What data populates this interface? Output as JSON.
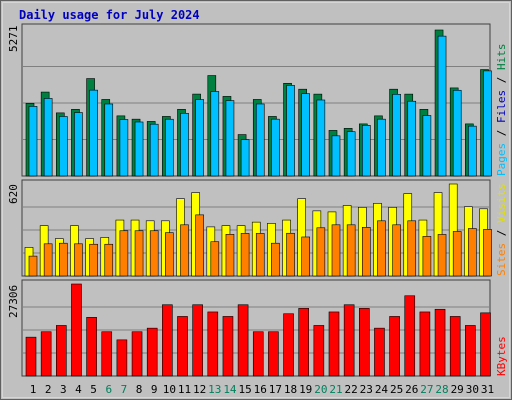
{
  "chart_data": {
    "type": "bar",
    "title": "Daily usage for July 2024",
    "categories": [
      "1",
      "2",
      "3",
      "4",
      "5",
      "6",
      "7",
      "8",
      "9",
      "10",
      "11",
      "12",
      "13",
      "14",
      "15",
      "16",
      "17",
      "18",
      "19",
      "20",
      "21",
      "22",
      "23",
      "24",
      "25",
      "26",
      "27",
      "28",
      "29",
      "30",
      "31"
    ],
    "weekend_days": [
      "6",
      "7",
      "13",
      "14",
      "20",
      "21",
      "27",
      "28"
    ],
    "panels": [
      {
        "id": "hits",
        "ymax_label": "5271",
        "ylim": [
          0,
          5271
        ],
        "right_labels": [
          "Pages",
          "Files",
          "Hits"
        ],
        "series": [
          {
            "name": "Hits",
            "color": "#008040",
            "values": [
              2625,
              3030,
              2279,
              2407,
              3518,
              2764,
              2171,
              2052,
              1970,
              2151,
              2407,
              2957,
              3627,
              2874,
              1496,
              2764,
              2151,
              3347,
              3134,
              2956,
              1646,
              1721,
              1881,
              2171,
              3134,
              2956,
              2407,
              5271,
              3180,
              1881,
              3843
            ]
          },
          {
            "name": "Files",
            "color": "#00c0ff",
            "values": [
              2514,
              2800,
              2150,
              2291,
              3100,
              2600,
              2040,
              1950,
              1870,
              2050,
              2264,
              2761,
              3050,
              2724,
              1310,
              2600,
              2052,
              3271,
              2971,
              2744,
              1450,
              1600,
              1830,
              2052,
              2950,
              2700,
              2183,
              5050,
              3095,
              1800,
              3795
            ]
          },
          {
            "name": "Pages",
            "color": "#0000c0",
            "values": [
              2200,
              2500,
              1900,
              2000,
              2800,
              2300,
              1800,
              1700,
              1700,
              1800,
              2000,
              2400,
              2700,
              2300,
              1100,
              2200,
              1800,
              2800,
              2500,
              2400,
              1300,
              1400,
              1600,
              1800,
              2500,
              2300,
              1900,
              4500,
              2800,
              1600,
              3400
            ]
          }
        ]
      },
      {
        "id": "visits",
        "ymax_label": "620",
        "ylim": [
          0,
          620
        ],
        "right_labels": [
          "Sites",
          "Visits"
        ],
        "series": [
          {
            "name": "Visits",
            "color": "#ffff00",
            "values": [
              193,
              339,
              252,
              339,
              252,
              260,
              377,
              377,
              372,
              372,
              521,
              562,
              331,
              339,
              339,
              363,
              355,
              377,
              521,
              439,
              432,
              475,
              463,
              490,
              463,
              555,
              377,
              562,
              620,
              467,
              453
            ]
          },
          {
            "name": "Sites",
            "color": "#ff8000",
            "values": [
              134,
              217,
              221,
              217,
              214,
              214,
              305,
              305,
              305,
              292,
              345,
              412,
              231,
              281,
              287,
              287,
              221,
              288,
              263,
              325,
              345,
              345,
              328,
              372,
              345,
              372,
              267,
              280,
              300,
              320,
              314
            ]
          }
        ]
      },
      {
        "id": "kbytes",
        "ymax_label": "27306",
        "ylim": [
          0,
          27306
        ],
        "right_labels": [
          "KBytes"
        ],
        "series": [
          {
            "name": "KBytes",
            "color": "#ff0000",
            "values": [
              11530,
              13133,
              15004,
              27306,
              17411,
              13133,
              10728,
              13133,
              14202,
              21149,
              17678,
              21149,
              19012,
              17678,
              21149,
              13133,
              13133,
              18478,
              20078,
              15004,
              19012,
              21149,
              20078,
              14202,
              17678,
              23816,
              19012,
              19812,
              17678,
              15004,
              18745
            ]
          }
        ]
      }
    ]
  }
}
